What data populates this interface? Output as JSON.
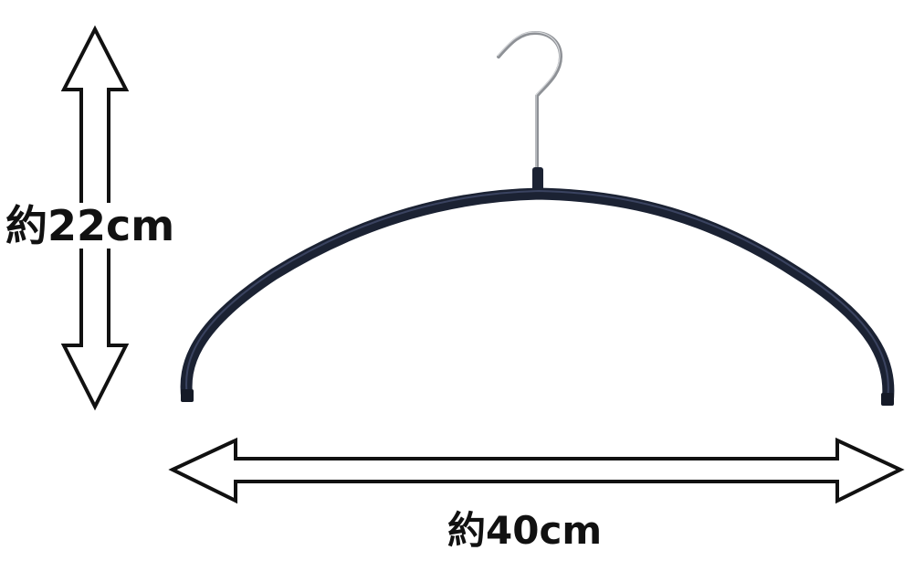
{
  "dimensions": {
    "height_label": "約22cm",
    "width_label": "約40cm"
  },
  "colors": {
    "hanger_body": "#1b2233",
    "hook_metal": "#8e9196",
    "arrow_fill": "#ffffff",
    "arrow_stroke": "#111111"
  },
  "icons": [
    "vertical-double-arrow-icon",
    "horizontal-double-arrow-icon",
    "clothes-hanger"
  ]
}
